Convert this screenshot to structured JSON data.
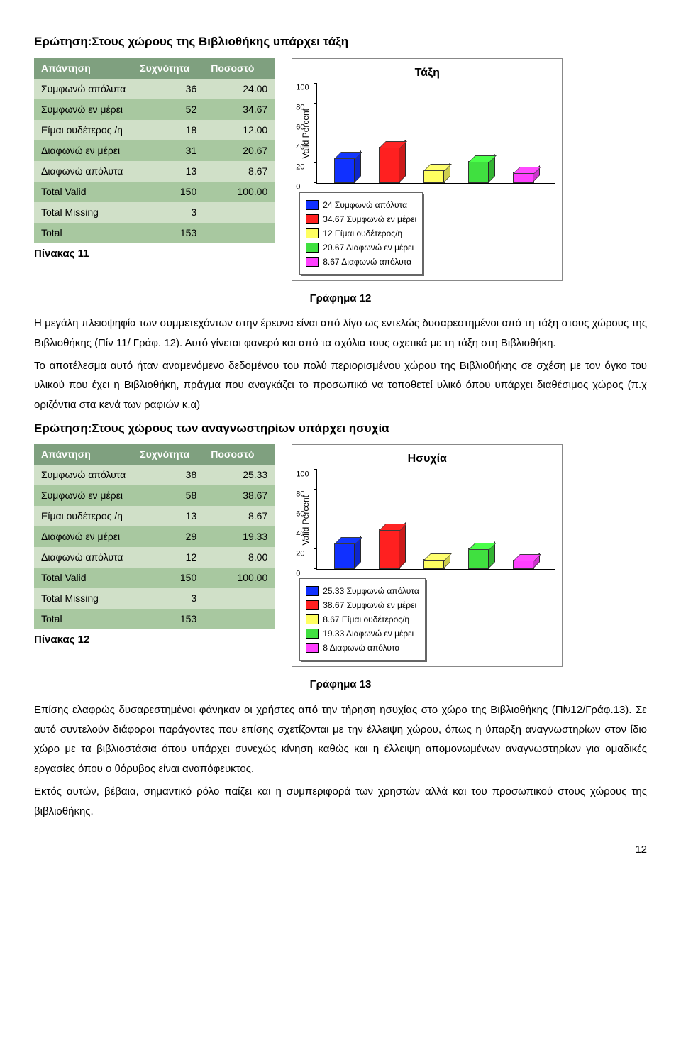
{
  "q1": {
    "title": "Ερώτηση:Στους χώρους της Βιβλιοθήκης υπάρχει τάξη",
    "table": {
      "headers": [
        "Απάντηση",
        "Συχνότητα",
        "Ποσοστό"
      ],
      "rows": [
        [
          "Συμφωνώ απόλυτα",
          "36",
          "24.00"
        ],
        [
          "Συμφωνώ εν μέρει",
          "52",
          "34.67"
        ],
        [
          "Είμαι ουδέτερος /η",
          "18",
          "12.00"
        ],
        [
          "Διαφωνώ εν μέρει",
          "31",
          "20.67"
        ],
        [
          "Διαφωνώ απόλυτα",
          "13",
          "8.67"
        ],
        [
          "Total Valid",
          "150",
          "100.00"
        ],
        [
          "Total Missing",
          "3",
          ""
        ],
        [
          "Total",
          "153",
          ""
        ]
      ]
    },
    "pinakas": "Πίνακας 11",
    "chart": {
      "title": "Τάξη",
      "ylabel": "Valid Percent",
      "ymax": 100,
      "yticks": [
        0,
        20,
        40,
        60,
        80,
        100
      ],
      "bars": [
        {
          "value": 24,
          "color": "#1030ff"
        },
        {
          "value": 34.67,
          "color": "#ff2020"
        },
        {
          "value": 12,
          "color": "#ffff60"
        },
        {
          "value": 20.67,
          "color": "#40e040"
        },
        {
          "value": 8.67,
          "color": "#ff40ff"
        }
      ],
      "legend": [
        {
          "color": "#1030ff",
          "label": "24 Συμφωνώ απόλυτα"
        },
        {
          "color": "#ff2020",
          "label": "34.67 Συμφωνώ εν μέρει"
        },
        {
          "color": "#ffff60",
          "label": "12 Είμαι ουδέτερος/η"
        },
        {
          "color": "#40e040",
          "label": "20.67 Διαφωνώ εν μέρει"
        },
        {
          "color": "#ff40ff",
          "label": "8.67 Διαφωνώ απόλυτα"
        }
      ]
    },
    "grafima": "Γράφημα 12"
  },
  "para1": "Η μεγάλη πλειοψηφία των συμμετεχόντων στην έρευνα είναι από λίγο ως εντελώς δυσαρεστημένοι από τη τάξη στους χώρους της Βιβλιοθήκης (Πίν 11/ Γράφ. 12). Αυτό γίνεται φανερό και από τα σχόλια τους σχετικά με τη τάξη στη Βιβλιοθήκη.",
  "para2": "Το αποτέλεσμα αυτό ήταν αναμενόμενο δεδομένου του  πολύ περιορισμένου χώρου της Βιβλιοθήκης σε σχέση με τον όγκο του υλικού που έχει η Βιβλιοθήκη, πράγμα που αναγκάζει το προσωπικό να τοποθετεί υλικό όπου υπάρχει διαθέσιμος χώρος (π.χ οριζόντια στα κενά των ραφιών κ.α)",
  "q2": {
    "title": "Ερώτηση:Στους χώρους των αναγνωστηρίων υπάρχει ησυχία",
    "table": {
      "headers": [
        "Απάντηση",
        "Συχνότητα",
        "Ποσοστό"
      ],
      "rows": [
        [
          "Συμφωνώ απόλυτα",
          "38",
          "25.33"
        ],
        [
          "Συμφωνώ εν μέρει",
          "58",
          "38.67"
        ],
        [
          "Είμαι ουδέτερος /η",
          "13",
          "8.67"
        ],
        [
          "Διαφωνώ εν μέρει",
          "29",
          "19.33"
        ],
        [
          "Διαφωνώ απόλυτα",
          "12",
          "8.00"
        ],
        [
          "Total Valid",
          "150",
          "100.00"
        ],
        [
          "Total Missing",
          "3",
          ""
        ],
        [
          "Total",
          "153",
          ""
        ]
      ]
    },
    "pinakas": "Πίνακας 12",
    "chart": {
      "title": "Ησυχία",
      "ylabel": "Valid Percent",
      "ymax": 100,
      "yticks": [
        0,
        20,
        40,
        60,
        80,
        100
      ],
      "bars": [
        {
          "value": 25.33,
          "color": "#1030ff"
        },
        {
          "value": 38.67,
          "color": "#ff2020"
        },
        {
          "value": 8.67,
          "color": "#ffff60"
        },
        {
          "value": 19.33,
          "color": "#40e040"
        },
        {
          "value": 8,
          "color": "#ff40ff"
        }
      ],
      "legend": [
        {
          "color": "#1030ff",
          "label": "25.33 Συμφωνώ απόλυτα"
        },
        {
          "color": "#ff2020",
          "label": "38.67 Συμφωνώ εν μέρει"
        },
        {
          "color": "#ffff60",
          "label": "8.67 Είμαι ουδέτερος/η"
        },
        {
          "color": "#40e040",
          "label": "19.33 Διαφωνώ εν μέρει"
        },
        {
          "color": "#ff40ff",
          "label": "8 Διαφωνώ απόλυτα"
        }
      ]
    },
    "grafima": "Γράφημα 13"
  },
  "para3": "Επίσης ελαφρώς δυσαρεστημένοι φάνηκαν οι χρήστες από την τήρηση ησυχίας στο χώρο της Βιβλιοθήκης (Πίν12/Γράφ.13). Σε αυτό συντελούν διάφοροι παράγοντες που επίσης σχετίζονται με την έλλειψη χώρου, όπως η ύπαρξη αναγνωστηρίων στον ίδιο χώρο με τα βιβλιοστάσια όπου υπάρχει συνεχώς κίνηση καθώς και η έλλειψη απομονωμένων αναγνωστηρίων για ομαδικές εργασίες όπου ο θόρυβος είναι αναπόφευκτος.",
  "para4": "Εκτός αυτών, βέβαια, σημαντικό ρόλο παίζει και η συμπεριφορά των χρηστών αλλά και του προσωπικού στους χώρους της βιβλιοθήκης.",
  "page": "12"
}
